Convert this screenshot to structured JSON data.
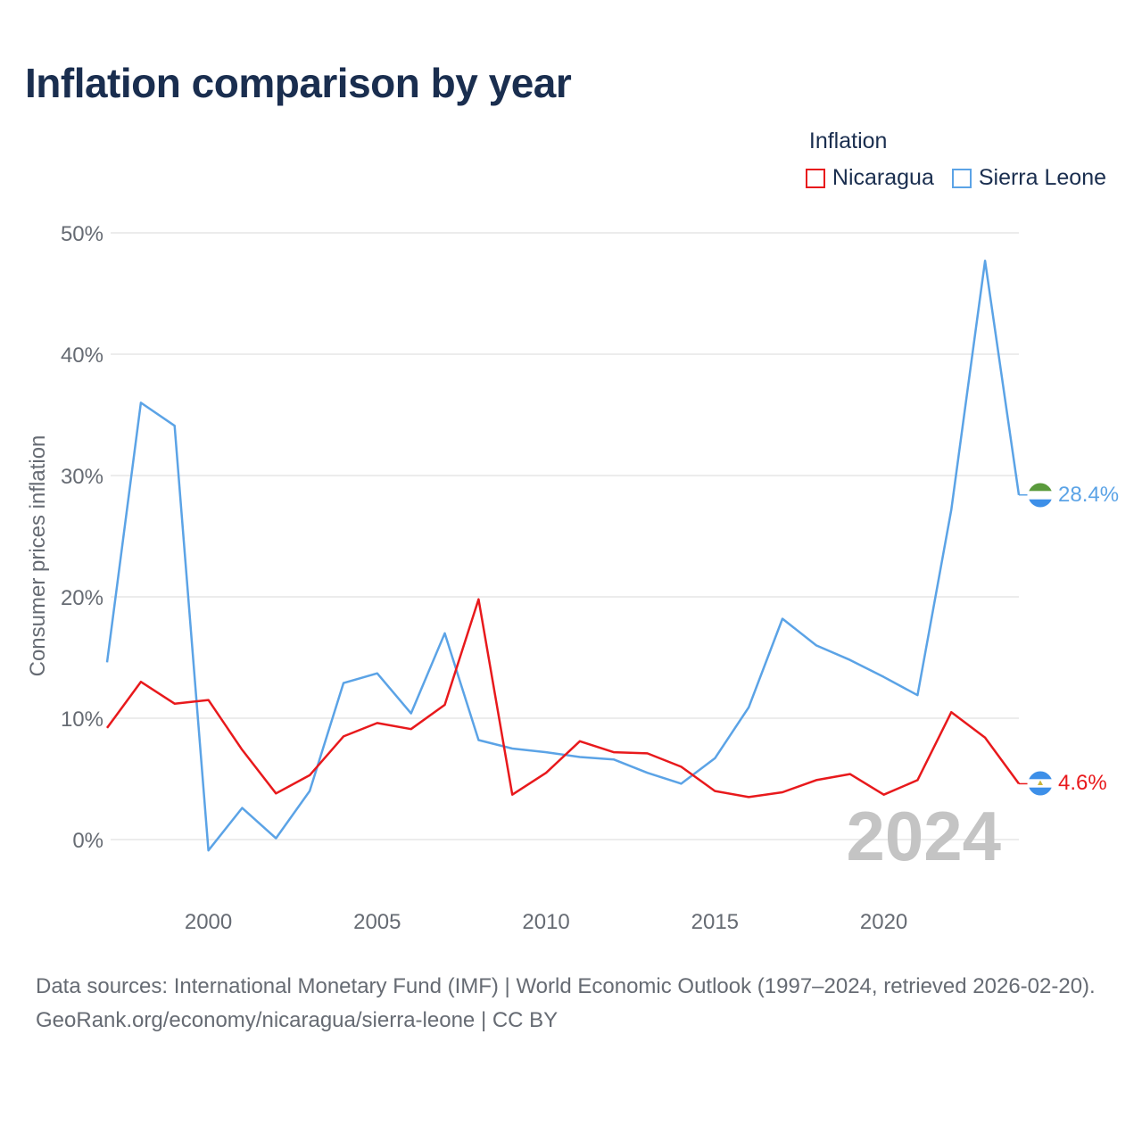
{
  "title": "Inflation comparison by year",
  "legend": {
    "title": "Inflation",
    "items": [
      {
        "label": "Nicaragua",
        "color": "#e8191c"
      },
      {
        "label": "Sierra Leone",
        "color": "#5ba3e6"
      }
    ]
  },
  "year_label": "2024",
  "footer": {
    "sources": "Data sources: International Monetary Fund (IMF) | World Economic Outlook (1997–2024, retrieved 2026-02-20).",
    "link": "GeoRank.org/economy/nicaragua/sierra-leone | CC BY"
  },
  "chart_data": {
    "type": "line",
    "title": "Inflation comparison by year",
    "xlabel": "",
    "ylabel": "Consumer prices inflation",
    "x": [
      1997,
      1998,
      1999,
      2000,
      2001,
      2002,
      2003,
      2004,
      2005,
      2006,
      2007,
      2008,
      2009,
      2010,
      2011,
      2012,
      2013,
      2014,
      2015,
      2016,
      2017,
      2018,
      2019,
      2020,
      2021,
      2022,
      2023,
      2024
    ],
    "xlim": [
      1997,
      2024
    ],
    "ylim": [
      -5,
      50
    ],
    "x_ticks": [
      2000,
      2005,
      2010,
      2015,
      2020
    ],
    "y_ticks": [
      0,
      10,
      20,
      30,
      40,
      50
    ],
    "y_tick_labels": [
      "0%",
      "10%",
      "20%",
      "30%",
      "40%",
      "50%"
    ],
    "grid": true,
    "series": [
      {
        "name": "Nicaragua",
        "color": "#e8191c",
        "values": [
          9.2,
          13.0,
          11.2,
          11.5,
          7.4,
          3.8,
          5.3,
          8.5,
          9.6,
          9.1,
          11.1,
          19.8,
          3.7,
          5.5,
          8.1,
          7.2,
          7.1,
          6.0,
          4.0,
          3.5,
          3.9,
          4.9,
          5.4,
          3.7,
          4.9,
          10.5,
          8.4,
          4.6
        ],
        "end_label": "4.6%"
      },
      {
        "name": "Sierra Leone",
        "color": "#5ba3e6",
        "values": [
          14.6,
          36.0,
          34.1,
          -0.9,
          2.6,
          0.1,
          4.0,
          12.9,
          13.7,
          10.4,
          17.0,
          8.2,
          7.5,
          7.2,
          6.8,
          6.6,
          5.5,
          4.6,
          6.7,
          10.9,
          18.2,
          16.0,
          14.8,
          13.4,
          11.9,
          27.2,
          47.7,
          28.4
        ],
        "end_label": "28.4%"
      }
    ]
  }
}
